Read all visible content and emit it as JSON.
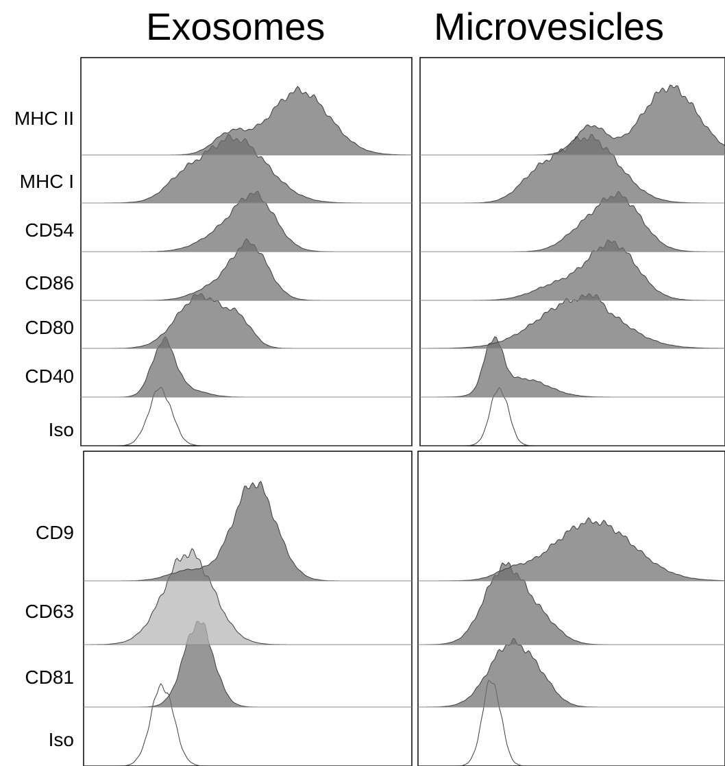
{
  "columns": [
    "Exosomes",
    "Microvesicles"
  ],
  "colors": {
    "fill_dark": "#6f6f6f",
    "fill_light": "#b4b4b4",
    "outline": "#3c3c3c",
    "baseline": "#8a8a8a"
  },
  "chart_data": [
    {
      "type": "area",
      "panel": "top",
      "column": "Exosomes",
      "series": [
        {
          "name": "MHC II",
          "peaks": [
            {
              "c": 0.66,
              "s": 0.09,
              "h": 0.8
            },
            {
              "c": 0.45,
              "s": 0.05,
              "h": 0.25
            }
          ],
          "fill": "dark"
        },
        {
          "name": "MHC I",
          "peaks": [
            {
              "c": 0.46,
              "s": 0.1,
              "h": 1.0
            },
            {
              "c": 0.3,
              "s": 0.05,
              "h": 0.2
            }
          ],
          "fill": "dark"
        },
        {
          "name": "CD54",
          "peaks": [
            {
              "c": 0.53,
              "s": 0.06,
              "h": 0.88
            },
            {
              "c": 0.43,
              "s": 0.07,
              "h": 0.3
            }
          ],
          "fill": "dark"
        },
        {
          "name": "CD86",
          "peaks": [
            {
              "c": 0.51,
              "s": 0.055,
              "h": 0.95
            },
            {
              "c": 0.4,
              "s": 0.06,
              "h": 0.2
            }
          ],
          "fill": "dark"
        },
        {
          "name": "CD80",
          "peaks": [
            {
              "c": 0.36,
              "s": 0.07,
              "h": 0.95
            },
            {
              "c": 0.48,
              "s": 0.04,
              "h": 0.4
            }
          ],
          "fill": "dark"
        },
        {
          "name": "CD40",
          "peaks": [
            {
              "c": 0.25,
              "s": 0.035,
              "h": 1.0
            },
            {
              "c": 0.33,
              "s": 0.05,
              "h": 0.12
            }
          ],
          "fill": "dark"
        },
        {
          "name": "Iso",
          "peaks": [
            {
              "c": 0.24,
              "s": 0.035,
              "h": 1.0
            }
          ],
          "fill": "none"
        }
      ]
    },
    {
      "type": "area",
      "panel": "top",
      "column": "Microvesicles",
      "series": [
        {
          "name": "MHC II",
          "peaks": [
            {
              "c": 0.82,
              "s": 0.09,
              "h": 0.95
            },
            {
              "c": 0.56,
              "s": 0.05,
              "h": 0.4
            }
          ],
          "fill": "dark"
        },
        {
          "name": "MHC I",
          "peaks": [
            {
              "c": 0.55,
              "s": 0.1,
              "h": 1.0
            },
            {
              "c": 0.38,
              "s": 0.06,
              "h": 0.3
            }
          ],
          "fill": "dark"
        },
        {
          "name": "CD54",
          "peaks": [
            {
              "c": 0.65,
              "s": 0.075,
              "h": 0.95
            },
            {
              "c": 0.52,
              "s": 0.06,
              "h": 0.25
            }
          ],
          "fill": "dark"
        },
        {
          "name": "CD86",
          "peaks": [
            {
              "c": 0.63,
              "s": 0.08,
              "h": 0.95
            },
            {
              "c": 0.45,
              "s": 0.08,
              "h": 0.25
            }
          ],
          "fill": "dark"
        },
        {
          "name": "CD80",
          "peaks": [
            {
              "c": 0.52,
              "s": 0.13,
              "h": 0.85
            },
            {
              "c": 0.57,
              "s": 0.02,
              "h": 0.15
            }
          ],
          "fill": "dark"
        },
        {
          "name": "CD40",
          "peaks": [
            {
              "c": 0.24,
              "s": 0.03,
              "h": 1.0
            },
            {
              "c": 0.34,
              "s": 0.08,
              "h": 0.35
            }
          ],
          "fill": "dark"
        },
        {
          "name": "Iso",
          "peaks": [
            {
              "c": 0.26,
              "s": 0.03,
              "h": 1.0
            }
          ],
          "fill": "none"
        }
      ]
    },
    {
      "type": "area",
      "panel": "bottom",
      "column": "Exosomes",
      "series": [
        {
          "name": "CD9",
          "peaks": [
            {
              "c": 0.52,
              "s": 0.065,
              "h": 0.95
            },
            {
              "c": 0.32,
              "s": 0.06,
              "h": 0.1
            }
          ],
          "fill": "dark"
        },
        {
          "name": "CD63",
          "peaks": [
            {
              "c": 0.32,
              "s": 0.075,
              "h": 1.0
            }
          ],
          "fill": "light"
        },
        {
          "name": "CD81",
          "peaks": [
            {
              "c": 0.35,
              "s": 0.045,
              "h": 1.0
            }
          ],
          "fill": "dark"
        },
        {
          "name": "Iso",
          "peaks": [
            {
              "c": 0.24,
              "s": 0.035,
              "h": 1.0
            }
          ],
          "fill": "none"
        }
      ]
    },
    {
      "type": "area",
      "panel": "bottom",
      "column": "Microvesicles",
      "series": [
        {
          "name": "CD9",
          "peaks": [
            {
              "c": 0.57,
              "s": 0.13,
              "h": 0.85
            },
            {
              "c": 0.3,
              "s": 0.05,
              "h": 0.1
            }
          ],
          "fill": "dark"
        },
        {
          "name": "CD63",
          "peaks": [
            {
              "c": 0.28,
              "s": 0.065,
              "h": 1.0
            },
            {
              "c": 0.4,
              "s": 0.06,
              "h": 0.3
            }
          ],
          "fill": "dark"
        },
        {
          "name": "CD81",
          "peaks": [
            {
              "c": 0.3,
              "s": 0.07,
              "h": 1.0
            },
            {
              "c": 0.4,
              "s": 0.05,
              "h": 0.25
            }
          ],
          "fill": "dark"
        },
        {
          "name": "Iso",
          "peaks": [
            {
              "c": 0.24,
              "s": 0.03,
              "h": 1.0
            }
          ],
          "fill": "none"
        }
      ]
    }
  ]
}
